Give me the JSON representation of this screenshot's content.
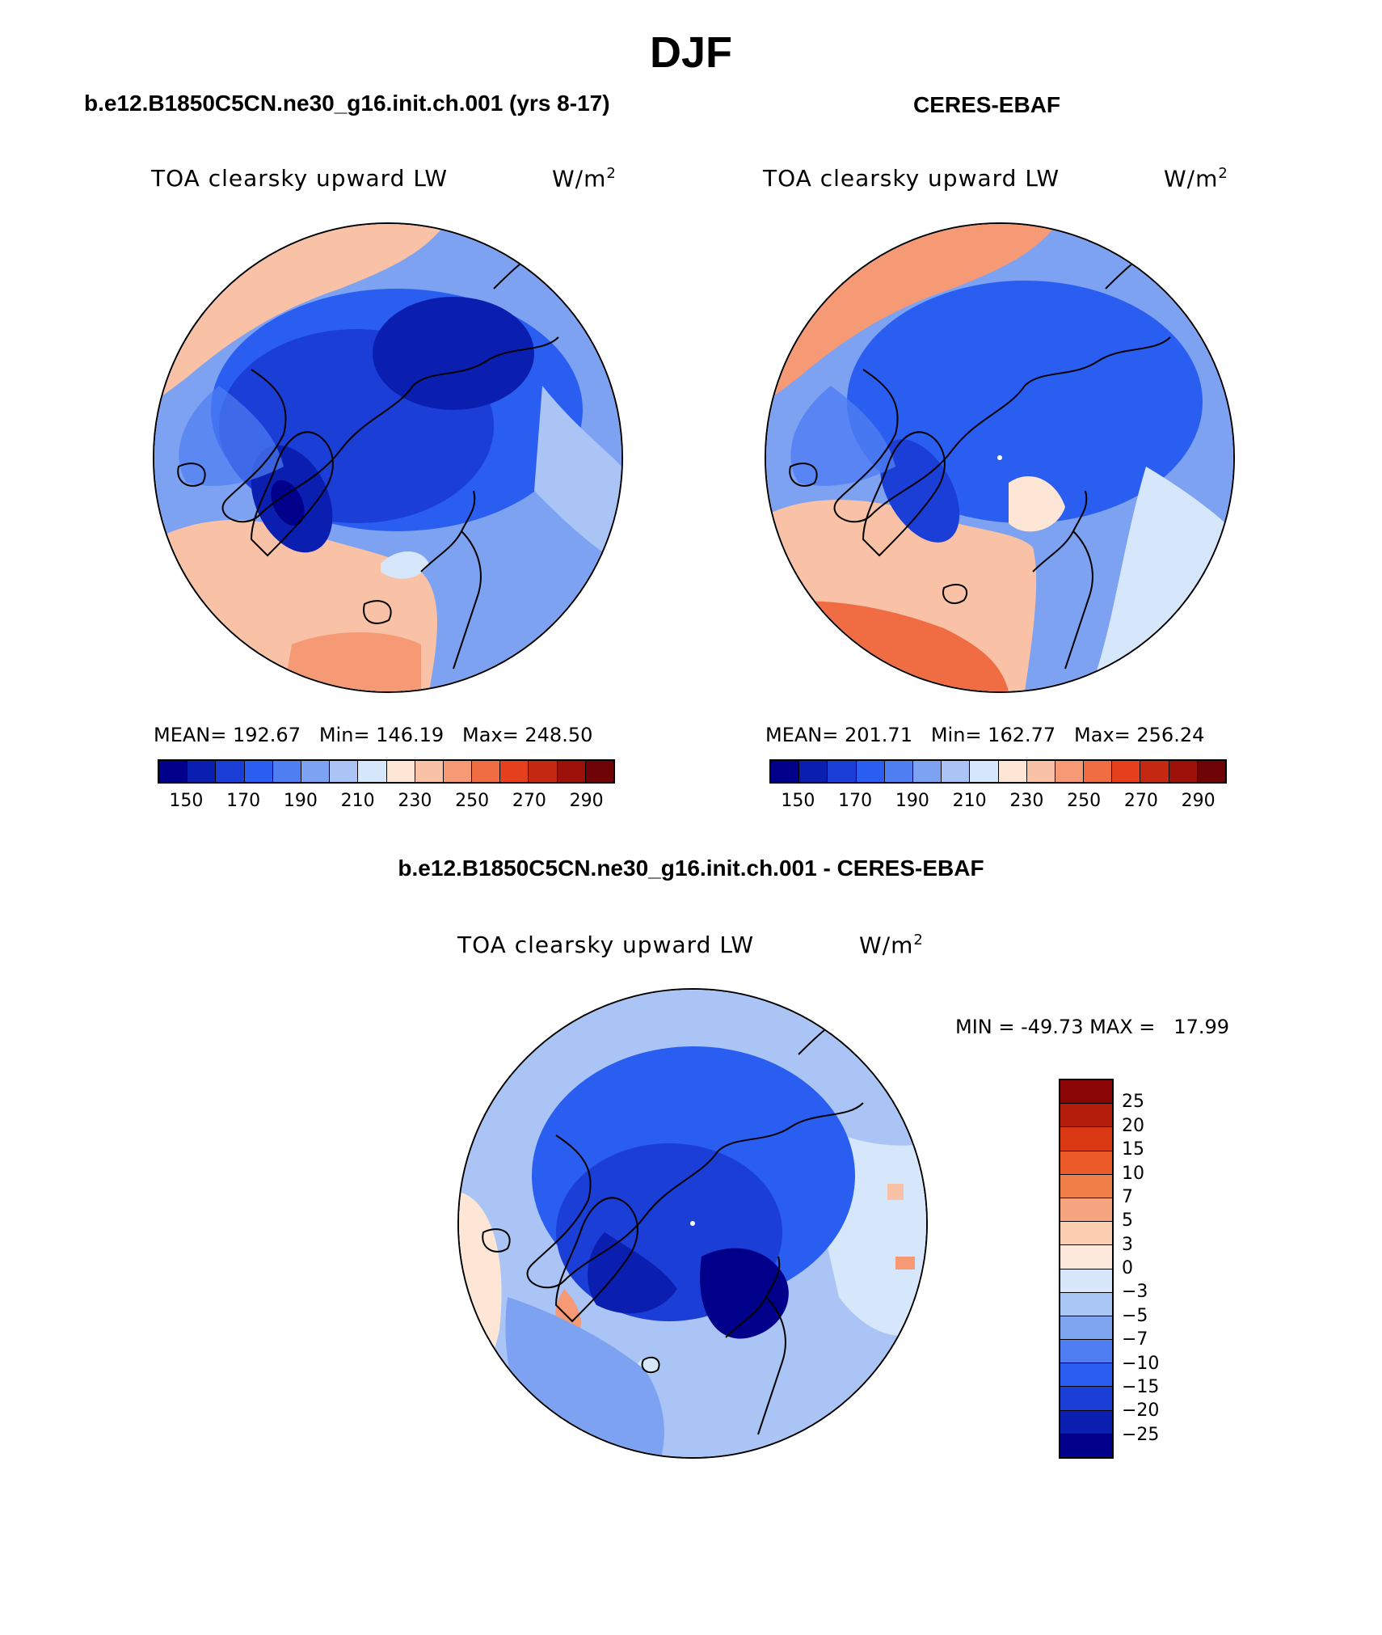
{
  "title": "DJF",
  "panels": {
    "model": {
      "title": "b.e12.B1850C5CN.ne30_g16.init.ch.001 (yrs 8-17)",
      "label": "TOA clearsky upward LW",
      "units_base": "W/m",
      "units_exp": "2",
      "stats": "MEAN= 192.67   Min= 146.19   Max= 248.50"
    },
    "obs": {
      "title": "CERES-EBAF",
      "label": "TOA clearsky upward LW",
      "units_base": "W/m",
      "units_exp": "2",
      "stats": "MEAN= 201.71   Min= 162.77   Max= 256.24"
    },
    "diff": {
      "title": "b.e12.B1850C5CN.ne30_g16.init.ch.001 - CERES-EBAF",
      "label": "TOA clearsky upward LW",
      "units_base": "W/m",
      "units_exp": "2",
      "stats": "MIN = -49.73 MAX =   17.99"
    }
  },
  "abs_colorbar": {
    "ticks": [
      "150",
      "170",
      "190",
      "210",
      "230",
      "250",
      "270",
      "290"
    ],
    "colors": [
      "#00008a",
      "#0a1fb0",
      "#1a3ed6",
      "#2a5ef0",
      "#4f7ef2",
      "#7ea2f2",
      "#aac5f5",
      "#d6e6fb",
      "#fde6d5",
      "#f9c2a6",
      "#f59a74",
      "#f06d43",
      "#e5401e",
      "#c52810",
      "#9c120a",
      "#6e0406"
    ]
  },
  "diff_colorbar": {
    "labels": [
      "25",
      "20",
      "15",
      "10",
      "7",
      "5",
      "3",
      "0",
      "-3",
      "-5",
      "-7",
      "-10",
      "-15",
      "-20",
      "-25"
    ],
    "colors": [
      "#8a0606",
      "#b41c0c",
      "#d93812",
      "#ec5a28",
      "#f07e48",
      "#f7a580",
      "#fbcdb1",
      "#fde8dc",
      "#d8e7fb",
      "#aac6f4",
      "#7fa4f0",
      "#4f7ef2",
      "#2a5ef0",
      "#1a3ed6",
      "#0a1fb0",
      "#00008a"
    ]
  },
  "chart_data": [
    {
      "type": "heatmap",
      "title": "b.e12.B1850C5CN.ne30_g16.init.ch.001 (yrs 8-17)",
      "variable": "TOA clearsky upward LW",
      "units": "W/m2",
      "projection": "north polar stereographic",
      "mean": 192.67,
      "min": 146.19,
      "max": 248.5,
      "colorbar_levels": [
        150,
        160,
        170,
        180,
        190,
        200,
        210,
        220,
        230,
        240,
        250,
        260,
        270,
        280,
        290
      ]
    },
    {
      "type": "heatmap",
      "title": "CERES-EBAF",
      "variable": "TOA clearsky upward LW",
      "units": "W/m2",
      "projection": "north polar stereographic",
      "mean": 201.71,
      "min": 162.77,
      "max": 256.24,
      "colorbar_levels": [
        150,
        160,
        170,
        180,
        190,
        200,
        210,
        220,
        230,
        240,
        250,
        260,
        270,
        280,
        290
      ]
    },
    {
      "type": "heatmap",
      "title": "b.e12.B1850C5CN.ne30_g16.init.ch.001 - CERES-EBAF",
      "variable": "TOA clearsky upward LW",
      "units": "W/m2",
      "projection": "north polar stereographic",
      "min": -49.73,
      "max": 17.99,
      "colorbar_levels": [
        -25,
        -20,
        -15,
        -10,
        -7,
        -5,
        -3,
        0,
        3,
        5,
        7,
        10,
        15,
        20,
        25
      ]
    }
  ]
}
